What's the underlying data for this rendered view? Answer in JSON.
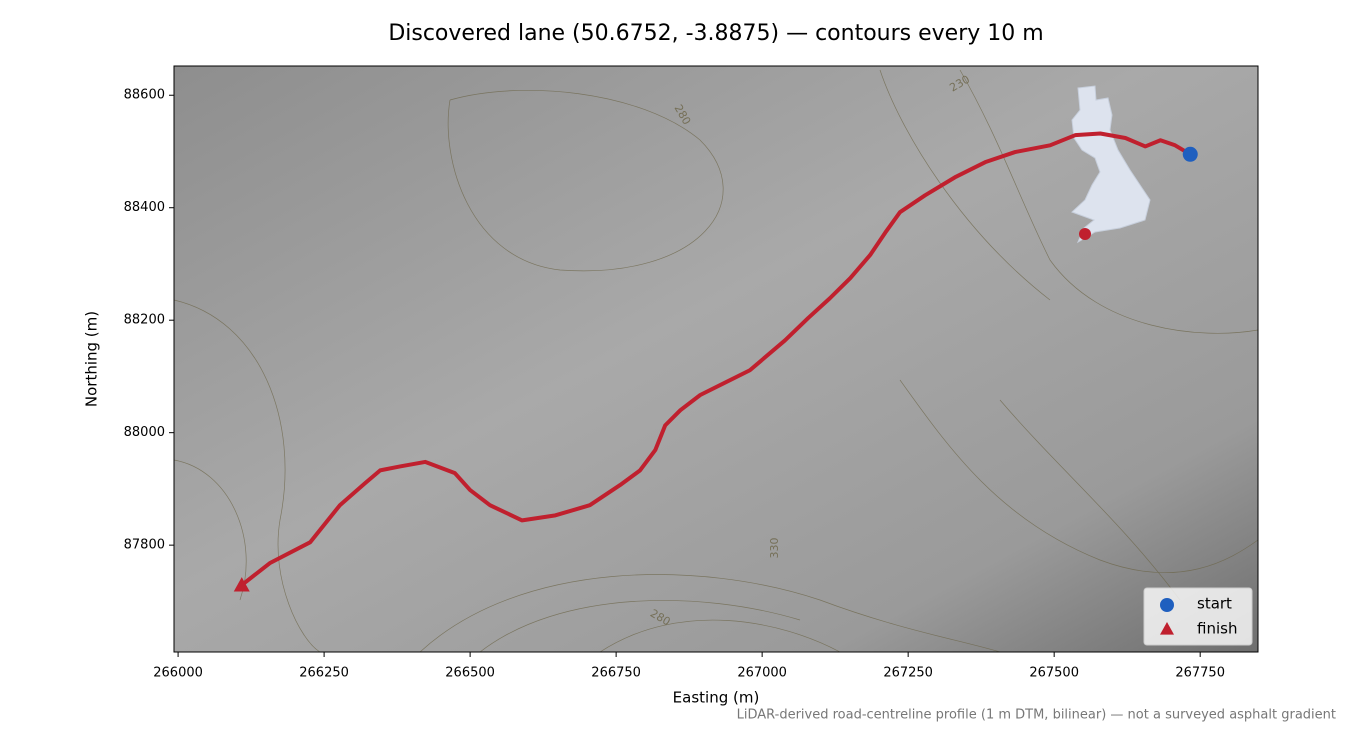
{
  "chart_data": {
    "type": "line",
    "title": "Discovered lane (50.6752, -3.8875) — contours every 10 m",
    "xlabel": "Easting (m)",
    "ylabel": "Northing (m)",
    "note": "LiDAR-derived road-centreline profile (1 m DTM, bilinear) — not a surveyed asphalt gradient",
    "contour_labels": [
      "280",
      "230",
      "330",
      "280"
    ],
    "color": "#c0202e",
    "x": [
      267733,
      267707,
      267682,
      267656,
      267622,
      267579,
      267536,
      267493,
      267433,
      267382,
      267330,
      267279,
      267236,
      267211,
      267185,
      267151,
      267116,
      267079,
      267039,
      266979,
      266894,
      266860,
      266834,
      266817,
      266791,
      266757,
      266705,
      266646,
      266589,
      266534,
      266500,
      266474,
      266423,
      266380,
      266346,
      266320,
      266277,
      266226,
      266157,
      266109
    ],
    "values": [
      88495,
      88511,
      88520,
      88509,
      88524,
      88532,
      88529,
      88511,
      88499,
      88481,
      88454,
      88422,
      88392,
      88356,
      88316,
      88275,
      88239,
      88204,
      88164,
      88111,
      88067,
      88040,
      88013,
      87969,
      87933,
      87907,
      87871,
      87853,
      87844,
      87871,
      87898,
      87928,
      87948,
      87940,
      87933,
      87910,
      87871,
      87805,
      87768,
      87729
    ],
    "start": {
      "name": "start",
      "x": 267733,
      "y": 88495,
      "color": "#1f5fbf"
    },
    "finish": {
      "name": "finish",
      "x": 266109,
      "y": 87729,
      "color": "#c0202e"
    },
    "xlim": [
      265993,
      267849
    ],
    "ylim": [
      87610,
      88652
    ],
    "xticks": [
      266000,
      266250,
      266500,
      266750,
      267000,
      267250,
      267500,
      267750
    ],
    "yticks": [
      87800,
      88000,
      88200,
      88400,
      88600
    ],
    "legend": "lower right"
  }
}
